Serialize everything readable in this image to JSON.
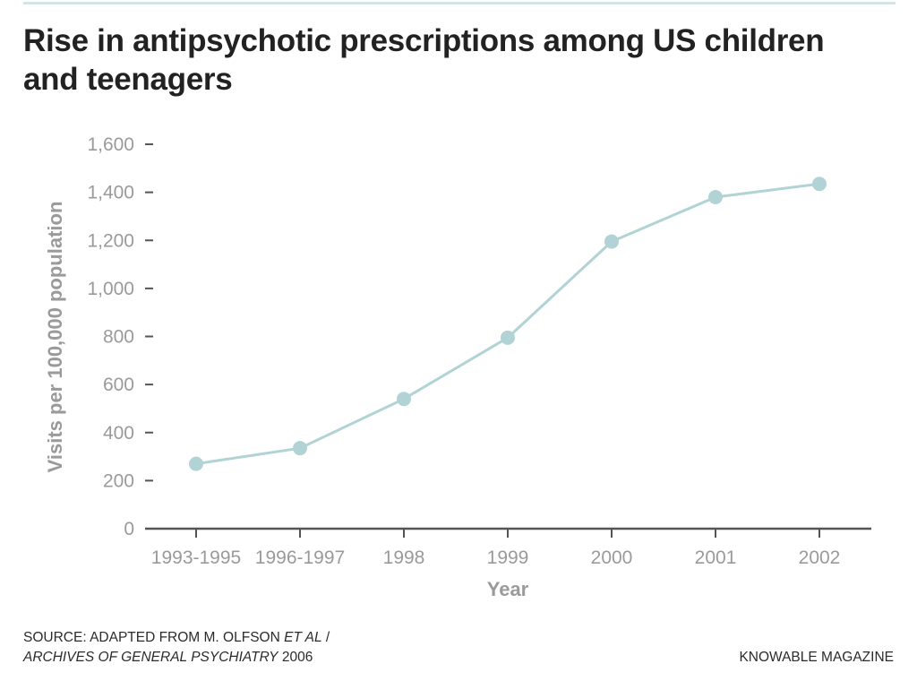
{
  "header": {
    "title": "Rise in antipsychotic prescriptions among US children and teenagers"
  },
  "footer": {
    "source_prefix": "SOURCE: ADAPTED FROM M. OLFSON ",
    "source_etal": "ET AL",
    "source_sep": " /",
    "source_journal": "ARCHIVES OF GENERAL PSYCHIATRY",
    "source_year": " 2006",
    "brand": "KNOWABLE MAGAZINE"
  },
  "colors": {
    "series": "#b2d3d5",
    "axis": "#555555",
    "tick_text": "#9a9a9a",
    "title": "#222222"
  },
  "chart_data": {
    "type": "line",
    "title": "Rise in antipsychotic prescriptions among US children and teenagers",
    "xlabel": "Year",
    "ylabel": "Visits per 100,000 population",
    "categories": [
      "1993-1995",
      "1996-1997",
      "1998",
      "1999",
      "2000",
      "2001",
      "2002"
    ],
    "series": [
      {
        "name": "Visits per 100,000 population",
        "values": [
          270,
          335,
          540,
          795,
          1195,
          1380,
          1435
        ]
      }
    ],
    "ylim": [
      0,
      1600
    ],
    "yticks": [
      0,
      200,
      400,
      600,
      800,
      1000,
      1200,
      1400,
      1600
    ],
    "ytick_labels": [
      "0",
      "200",
      "400",
      "600",
      "800",
      "1,000",
      "1,200",
      "1,400",
      "1,600"
    ],
    "grid": false,
    "legend": "none",
    "markers": true
  }
}
